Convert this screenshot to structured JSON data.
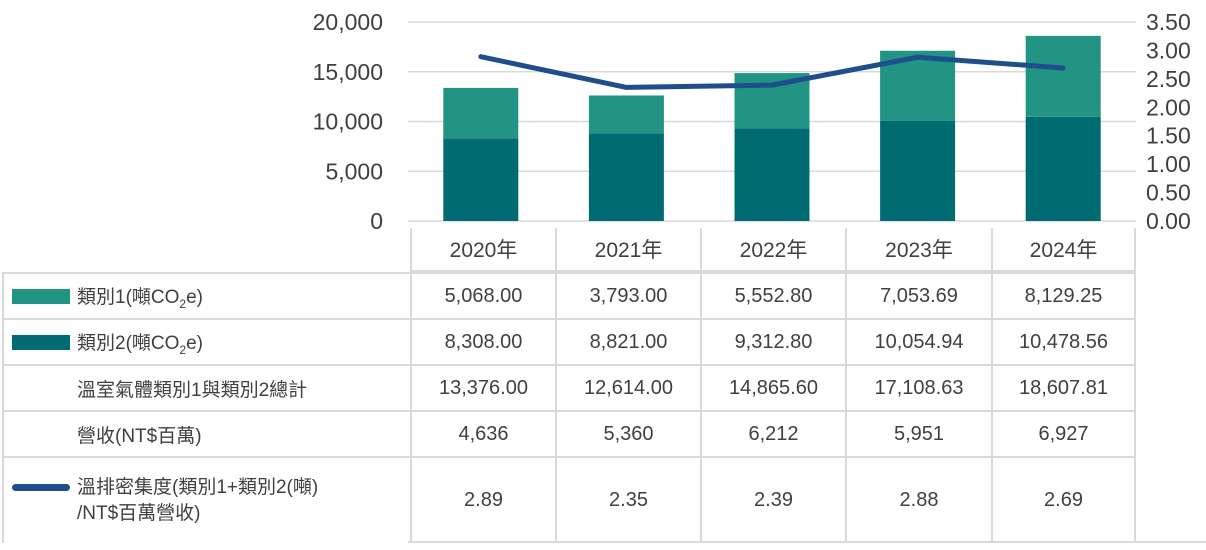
{
  "colors": {
    "cat1": "#229483",
    "cat2": "#006C72",
    "line": "#1F4E8C",
    "grid": "#D9D9D9",
    "text": "#404040"
  },
  "chart_data": {
    "type": "bar",
    "subtype": "stacked-bar-with-line",
    "categories": [
      "2020年",
      "2021年",
      "2022年",
      "2023年",
      "2024年"
    ],
    "series": [
      {
        "name": "類別1(噸CO2e)",
        "chart": "bar",
        "stack": "ghg",
        "color_key": "cat1",
        "values": [
          5068.0,
          3793.0,
          5552.8,
          7053.69,
          8129.25
        ]
      },
      {
        "name": "類別2(噸CO2e)",
        "chart": "bar",
        "stack": "ghg",
        "color_key": "cat2",
        "values": [
          8308.0,
          8821.0,
          9312.8,
          10054.94,
          10478.56
        ]
      },
      {
        "name": "溫室氣體類別1與類別2總計",
        "chart": "none",
        "values": [
          13376.0,
          12614.0,
          14865.6,
          17108.63,
          18607.81
        ]
      },
      {
        "name": "營收(NT$百萬)",
        "chart": "none",
        "values": [
          4636,
          5360,
          6212,
          5951,
          6927
        ]
      },
      {
        "name": "溫排密集度(類別1+類別2(噸)/NT$百萬營收)",
        "chart": "line",
        "axis": "right",
        "color_key": "line",
        "values": [
          2.89,
          2.35,
          2.39,
          2.88,
          2.69
        ]
      }
    ],
    "left_axis": {
      "min": 0,
      "max": 20000,
      "step": 5000,
      "ticks": [
        "20,000",
        "15,000",
        "10,000",
        "5,000",
        "0"
      ]
    },
    "right_axis": {
      "min": 0.0,
      "max": 3.5,
      "step": 0.5,
      "ticks": [
        "3.50",
        "3.00",
        "2.50",
        "2.00",
        "1.50",
        "1.00",
        "0.50",
        "0.00"
      ]
    },
    "grid": true,
    "legend_position": "table-left-column",
    "title": "",
    "xlabel": "",
    "ylabel": ""
  },
  "table": {
    "col_headers": [
      "2020年",
      "2021年",
      "2022年",
      "2023年",
      "2024年"
    ],
    "rows": [
      {
        "swatch": "cat1",
        "label_pre": "類別1(噸CO",
        "label_sub": "2",
        "label_post": "e)",
        "values": [
          "5,068.00",
          "3,793.00",
          "5,552.80",
          "7,053.69",
          "8,129.25"
        ]
      },
      {
        "swatch": "cat2",
        "label_pre": "類別2(噸CO",
        "label_sub": "2",
        "label_post": "e)",
        "values": [
          "8,308.00",
          "8,821.00",
          "9,312.80",
          "10,054.94",
          "10,478.56"
        ]
      },
      {
        "swatch": "none",
        "label": "溫室氣體類別1與類別2總計",
        "values": [
          "13,376.00",
          "12,614.00",
          "14,865.60",
          "17,108.63",
          "18,607.81"
        ]
      },
      {
        "swatch": "none",
        "label": "營收(NT$百萬)",
        "values": [
          "4,636",
          "5,360",
          "6,212",
          "5,951",
          "6,927"
        ]
      },
      {
        "swatch": "line",
        "label_lines": [
          "溫排密集度(類別1+類別2(噸)",
          "/NT$百萬營收)"
        ],
        "values": [
          "2.89",
          "2.35",
          "2.39",
          "2.88",
          "2.69"
        ]
      }
    ]
  }
}
